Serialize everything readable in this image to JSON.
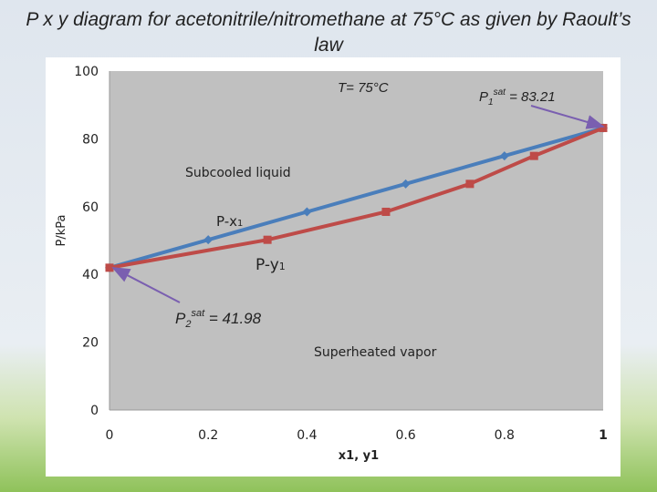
{
  "slide": {
    "title": "P x y diagram for acetonitrile/nitromethane at 75°C as given by Raoult’s law"
  },
  "chart_data": {
    "type": "line",
    "title": "",
    "xlabel": "x1, y1",
    "ylabel": "P/kPa",
    "xlim": [
      0,
      1
    ],
    "ylim": [
      0,
      100
    ],
    "x_ticks": [
      "0",
      "0.2",
      "0.4",
      "0.6",
      "0.8",
      "1"
    ],
    "y_ticks": [
      "0",
      "20",
      "40",
      "60",
      "80",
      "100"
    ],
    "grid": false,
    "legend": "none",
    "series": [
      {
        "name": "P-x1",
        "color": "#4a7ebb",
        "marker": "diamond",
        "x": [
          0,
          0.2,
          0.4,
          0.6,
          0.8,
          1
        ],
        "y": [
          41.98,
          50.22,
          58.47,
          66.71,
          74.96,
          83.21
        ]
      },
      {
        "name": "P-y1",
        "color": "#be4b48",
        "marker": "square",
        "x": [
          0,
          0.32,
          0.56,
          0.73,
          0.86,
          1
        ],
        "y": [
          41.98,
          50.22,
          58.47,
          66.71,
          74.96,
          83.21
        ]
      }
    ],
    "annotations": {
      "temperature": "T= 75°C",
      "p1sat_base": "P",
      "p1sat_sub": "1",
      "p1sat_sup": "sat",
      "p1sat_value": " = 83.21",
      "p2sat_base": "P",
      "p2sat_sub": "2",
      "p2sat_sup": "sat",
      "p2sat_value": " = 41.98",
      "px_base": "P-x",
      "px_sub": "1",
      "py_base": "P-y",
      "py_sub": "1",
      "liquid_region": "Subcooled liquid",
      "vapor_region": "Superheated vapor"
    },
    "plot_area_color": "#c0c0c0",
    "arrow_color": "#7a5fb0"
  }
}
